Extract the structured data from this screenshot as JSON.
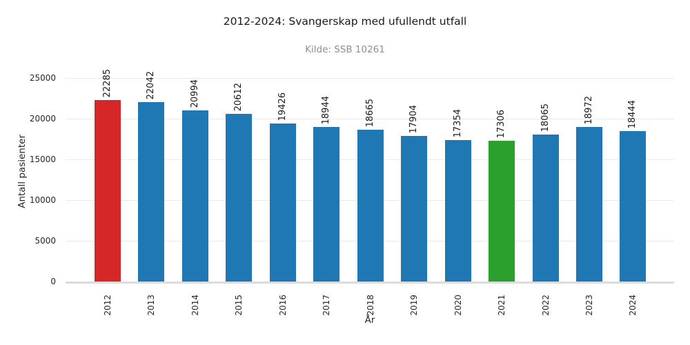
{
  "chart_data": {
    "type": "bar",
    "title": "2012-2024: Svangerskap med ufullendt utfall",
    "subtitle": "Kilde: SSB 10261",
    "xlabel": "År",
    "ylabel": "Antall pasienter",
    "categories": [
      "2012",
      "2013",
      "2014",
      "2015",
      "2016",
      "2017",
      "2018",
      "2019",
      "2020",
      "2021",
      "2022",
      "2023",
      "2024"
    ],
    "values": [
      22285,
      22042,
      20994,
      20612,
      19426,
      18944,
      18665,
      17904,
      17354,
      17306,
      18065,
      18972,
      18444
    ],
    "bar_color_default": "#1f77b4",
    "highlight_colors": {
      "2012": "#d62728",
      "2021": "#2ca02c"
    },
    "yticks": [
      0,
      5000,
      10000,
      15000,
      20000,
      25000
    ],
    "ylim": [
      0,
      25000
    ],
    "grid": "horizontal",
    "legend": "none",
    "xtick_rotation": 90,
    "value_label_rotation": 90
  },
  "styles": {
    "background": "#ffffff",
    "grid_color": "#ebebeb",
    "baseline_color": "#dcdcdc",
    "title_color": "#1a1a1a",
    "subtitle_color": "#8f8f8f",
    "tick_color": "#262626"
  }
}
